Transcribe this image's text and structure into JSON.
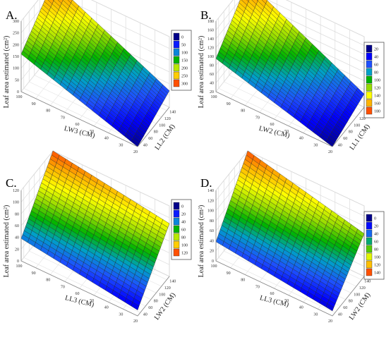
{
  "chart_data": [
    {
      "type": "surface3d",
      "panel": "A.",
      "xlabel": "LW3 (CM)",
      "ylabel": "LL2 (CM)",
      "zlabel": "Leaf area estimated (cm²)",
      "x_ticks": [
        "100",
        "90",
        "80",
        "70",
        "60",
        "50",
        "40",
        "30",
        "20"
      ],
      "y_ticks": [
        "40",
        "60",
        "80",
        "100",
        "120",
        "140"
      ],
      "z_ticks": [
        "0",
        "50",
        "100",
        "150",
        "200",
        "250",
        "300"
      ],
      "xlim": [
        20,
        100
      ],
      "ylim": [
        30,
        150
      ],
      "zlim": [
        0,
        300
      ],
      "surface_corners": {
        "x100_y30": 160,
        "x100_y150": 300,
        "x20_y30": 0,
        "x20_y150": 70
      },
      "legend": [
        "0",
        "50",
        "100",
        "150",
        "200",
        "250",
        "300"
      ]
    },
    {
      "type": "surface3d",
      "panel": "B.",
      "xlabel": "LW2 (CM)",
      "ylabel": "LL1 (CM)",
      "zlabel": "Leaf area estimated (cm²)",
      "x_ticks": [
        "100",
        "90",
        "80",
        "70",
        "60",
        "50",
        "40",
        "30",
        "20"
      ],
      "y_ticks": [
        "40",
        "60",
        "80",
        "100",
        "120",
        "140"
      ],
      "z_ticks": [
        "20",
        "40",
        "60",
        "80",
        "100",
        "120",
        "140",
        "160",
        "180"
      ],
      "xlim": [
        20,
        100
      ],
      "ylim": [
        30,
        150
      ],
      "zlim": [
        20,
        180
      ],
      "surface_corners": {
        "x100_y30": 95,
        "x100_y150": 180,
        "x20_y30": 20,
        "x20_y150": 50
      },
      "legend": [
        "20",
        "40",
        "60",
        "80",
        "100",
        "120",
        "140",
        "160",
        "180"
      ]
    },
    {
      "type": "surface3d",
      "panel": "C.",
      "xlabel": "LL3 (CM)",
      "ylabel": "LW2 (CM)",
      "zlabel": "Leaf area estimated (cm²)",
      "x_ticks": [
        "100",
        "90",
        "80",
        "70",
        "60",
        "50",
        "40",
        "30",
        "20"
      ],
      "y_ticks": [
        "40",
        "60",
        "80",
        "100",
        "120",
        "140"
      ],
      "z_ticks": [
        "0",
        "20",
        "40",
        "60",
        "80",
        "100",
        "120"
      ],
      "xlim": [
        20,
        100
      ],
      "ylim": [
        30,
        150
      ],
      "zlim": [
        0,
        120
      ],
      "surface_corners": {
        "x100_y30": 38,
        "x100_y150": 120,
        "x20_y30": 10,
        "x20_y150": 90
      },
      "legend": [
        "0",
        "20",
        "40",
        "60",
        "80",
        "100",
        "120"
      ]
    },
    {
      "type": "surface3d",
      "panel": "D.",
      "xlabel": "LL3 (CM)",
      "ylabel": "LW2 (CM)",
      "zlabel": "Leaf area estimated (cm²)",
      "x_ticks": [
        "100",
        "90",
        "80",
        "70",
        "60",
        "50",
        "40",
        "30",
        "20"
      ],
      "y_ticks": [
        "40",
        "60",
        "80",
        "100",
        "120",
        "140"
      ],
      "z_ticks": [
        "0",
        "20",
        "40",
        "60",
        "80",
        "100",
        "120",
        "140"
      ],
      "xlim": [
        20,
        100
      ],
      "ylim": [
        30,
        150
      ],
      "zlim": [
        0,
        140
      ],
      "surface_corners": {
        "x100_y30": 38,
        "x100_y150": 140,
        "x20_y30": 10,
        "x20_y150": 85
      },
      "legend": [
        "0",
        "20",
        "40",
        "60",
        "80",
        "100",
        "120",
        "140"
      ]
    }
  ],
  "colors": [
    "#00008a",
    "#0000ff",
    "#1e50ff",
    "#00a0c8",
    "#00b400",
    "#96dc00",
    "#ffff00",
    "#ffb400",
    "#ff5000"
  ]
}
